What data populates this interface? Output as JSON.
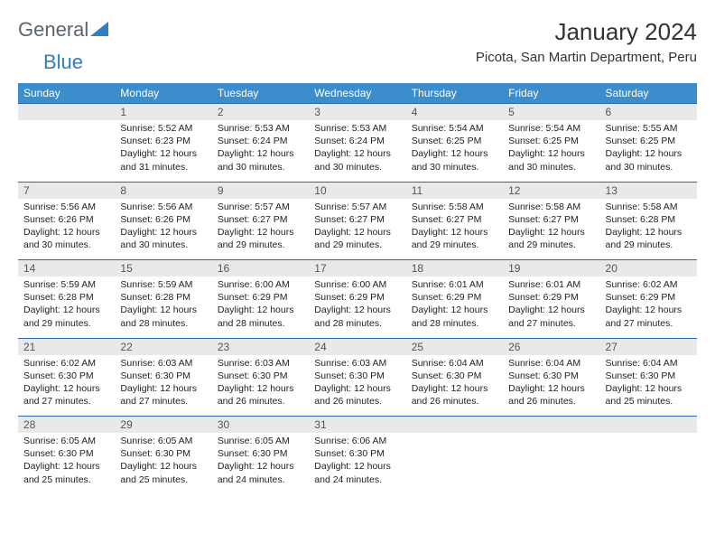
{
  "logo": {
    "general": "General",
    "blue": "Blue"
  },
  "header": {
    "month_title": "January 2024",
    "location": "Picota, San Martin Department, Peru"
  },
  "colors": {
    "header_bg": "#3c8dcc",
    "header_text": "#ffffff",
    "daynum_bg": "#e9e9e9",
    "row_border": "#2d6aa3",
    "logo_gray": "#5a6570",
    "logo_blue": "#2d7fc1"
  },
  "weekdays": [
    "Sunday",
    "Monday",
    "Tuesday",
    "Wednesday",
    "Thursday",
    "Friday",
    "Saturday"
  ],
  "weeks": [
    [
      {
        "empty": true
      },
      {
        "n": "1",
        "sr": "Sunrise: 5:52 AM",
        "ss": "Sunset: 6:23 PM",
        "dl": "Daylight: 12 hours and 31 minutes."
      },
      {
        "n": "2",
        "sr": "Sunrise: 5:53 AM",
        "ss": "Sunset: 6:24 PM",
        "dl": "Daylight: 12 hours and 30 minutes."
      },
      {
        "n": "3",
        "sr": "Sunrise: 5:53 AM",
        "ss": "Sunset: 6:24 PM",
        "dl": "Daylight: 12 hours and 30 minutes."
      },
      {
        "n": "4",
        "sr": "Sunrise: 5:54 AM",
        "ss": "Sunset: 6:25 PM",
        "dl": "Daylight: 12 hours and 30 minutes."
      },
      {
        "n": "5",
        "sr": "Sunrise: 5:54 AM",
        "ss": "Sunset: 6:25 PM",
        "dl": "Daylight: 12 hours and 30 minutes."
      },
      {
        "n": "6",
        "sr": "Sunrise: 5:55 AM",
        "ss": "Sunset: 6:25 PM",
        "dl": "Daylight: 12 hours and 30 minutes."
      }
    ],
    [
      {
        "n": "7",
        "sr": "Sunrise: 5:56 AM",
        "ss": "Sunset: 6:26 PM",
        "dl": "Daylight: 12 hours and 30 minutes."
      },
      {
        "n": "8",
        "sr": "Sunrise: 5:56 AM",
        "ss": "Sunset: 6:26 PM",
        "dl": "Daylight: 12 hours and 30 minutes."
      },
      {
        "n": "9",
        "sr": "Sunrise: 5:57 AM",
        "ss": "Sunset: 6:27 PM",
        "dl": "Daylight: 12 hours and 29 minutes."
      },
      {
        "n": "10",
        "sr": "Sunrise: 5:57 AM",
        "ss": "Sunset: 6:27 PM",
        "dl": "Daylight: 12 hours and 29 minutes."
      },
      {
        "n": "11",
        "sr": "Sunrise: 5:58 AM",
        "ss": "Sunset: 6:27 PM",
        "dl": "Daylight: 12 hours and 29 minutes."
      },
      {
        "n": "12",
        "sr": "Sunrise: 5:58 AM",
        "ss": "Sunset: 6:27 PM",
        "dl": "Daylight: 12 hours and 29 minutes."
      },
      {
        "n": "13",
        "sr": "Sunrise: 5:58 AM",
        "ss": "Sunset: 6:28 PM",
        "dl": "Daylight: 12 hours and 29 minutes."
      }
    ],
    [
      {
        "n": "14",
        "sr": "Sunrise: 5:59 AM",
        "ss": "Sunset: 6:28 PM",
        "dl": "Daylight: 12 hours and 29 minutes."
      },
      {
        "n": "15",
        "sr": "Sunrise: 5:59 AM",
        "ss": "Sunset: 6:28 PM",
        "dl": "Daylight: 12 hours and 28 minutes."
      },
      {
        "n": "16",
        "sr": "Sunrise: 6:00 AM",
        "ss": "Sunset: 6:29 PM",
        "dl": "Daylight: 12 hours and 28 minutes."
      },
      {
        "n": "17",
        "sr": "Sunrise: 6:00 AM",
        "ss": "Sunset: 6:29 PM",
        "dl": "Daylight: 12 hours and 28 minutes."
      },
      {
        "n": "18",
        "sr": "Sunrise: 6:01 AM",
        "ss": "Sunset: 6:29 PM",
        "dl": "Daylight: 12 hours and 28 minutes."
      },
      {
        "n": "19",
        "sr": "Sunrise: 6:01 AM",
        "ss": "Sunset: 6:29 PM",
        "dl": "Daylight: 12 hours and 27 minutes."
      },
      {
        "n": "20",
        "sr": "Sunrise: 6:02 AM",
        "ss": "Sunset: 6:29 PM",
        "dl": "Daylight: 12 hours and 27 minutes."
      }
    ],
    [
      {
        "n": "21",
        "sr": "Sunrise: 6:02 AM",
        "ss": "Sunset: 6:30 PM",
        "dl": "Daylight: 12 hours and 27 minutes."
      },
      {
        "n": "22",
        "sr": "Sunrise: 6:03 AM",
        "ss": "Sunset: 6:30 PM",
        "dl": "Daylight: 12 hours and 27 minutes."
      },
      {
        "n": "23",
        "sr": "Sunrise: 6:03 AM",
        "ss": "Sunset: 6:30 PM",
        "dl": "Daylight: 12 hours and 26 minutes."
      },
      {
        "n": "24",
        "sr": "Sunrise: 6:03 AM",
        "ss": "Sunset: 6:30 PM",
        "dl": "Daylight: 12 hours and 26 minutes."
      },
      {
        "n": "25",
        "sr": "Sunrise: 6:04 AM",
        "ss": "Sunset: 6:30 PM",
        "dl": "Daylight: 12 hours and 26 minutes."
      },
      {
        "n": "26",
        "sr": "Sunrise: 6:04 AM",
        "ss": "Sunset: 6:30 PM",
        "dl": "Daylight: 12 hours and 26 minutes."
      },
      {
        "n": "27",
        "sr": "Sunrise: 6:04 AM",
        "ss": "Sunset: 6:30 PM",
        "dl": "Daylight: 12 hours and 25 minutes."
      }
    ],
    [
      {
        "n": "28",
        "sr": "Sunrise: 6:05 AM",
        "ss": "Sunset: 6:30 PM",
        "dl": "Daylight: 12 hours and 25 minutes."
      },
      {
        "n": "29",
        "sr": "Sunrise: 6:05 AM",
        "ss": "Sunset: 6:30 PM",
        "dl": "Daylight: 12 hours and 25 minutes."
      },
      {
        "n": "30",
        "sr": "Sunrise: 6:05 AM",
        "ss": "Sunset: 6:30 PM",
        "dl": "Daylight: 12 hours and 24 minutes."
      },
      {
        "n": "31",
        "sr": "Sunrise: 6:06 AM",
        "ss": "Sunset: 6:30 PM",
        "dl": "Daylight: 12 hours and 24 minutes."
      },
      {
        "empty": true
      },
      {
        "empty": true
      },
      {
        "empty": true
      }
    ]
  ]
}
